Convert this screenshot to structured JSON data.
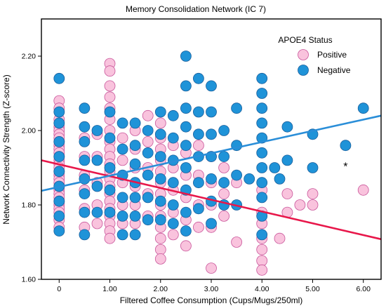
{
  "chart_data": {
    "type": "scatter",
    "title": "Memory Consolidation Network (IC 7)",
    "xlabel": "Filtered Coffee Consumption (Cups/Mugs/250ml)",
    "ylabel": "Network Connectivity Strength (Z-score)",
    "xlim": [
      -0.35,
      6.35
    ],
    "ylim": [
      1.6,
      2.3
    ],
    "x_ticks": [
      0,
      1,
      2,
      3,
      4,
      5,
      6
    ],
    "x_tick_labels": [
      "0",
      "1.00",
      "2.00",
      "3.00",
      "4.00",
      "5.00",
      "6.00"
    ],
    "y_ticks": [
      1.6,
      1.8,
      2.0,
      2.2
    ],
    "y_tick_labels": [
      "1.60",
      "1.80",
      "2.00",
      "2.20"
    ],
    "grid": false,
    "legend": {
      "title": "APOE4 Status",
      "placement": "top-right"
    },
    "annotation": {
      "text": "*",
      "x": 5.65,
      "y": 1.91
    },
    "series": [
      {
        "name": "Positive",
        "color": "#f9c3dd",
        "stroke": "#c9559a",
        "fit_line": {
          "color": "#e8174a",
          "x": [
            -0.35,
            6.35
          ],
          "y": [
            1.92,
            1.708
          ]
        },
        "points": [
          [
            0,
            2.08
          ],
          [
            0,
            2.06
          ],
          [
            0,
            2.03
          ],
          [
            0,
            2.01
          ],
          [
            0,
            2.0
          ],
          [
            0,
            1.99
          ],
          [
            0,
            1.98
          ],
          [
            0,
            1.97
          ],
          [
            0,
            1.96
          ],
          [
            0,
            1.95
          ],
          [
            0,
            1.94
          ],
          [
            0,
            1.93
          ],
          [
            0,
            1.92
          ],
          [
            0,
            1.91
          ],
          [
            0,
            1.9
          ],
          [
            0,
            1.89
          ],
          [
            0,
            1.88
          ],
          [
            0,
            1.87
          ],
          [
            0,
            1.86
          ],
          [
            0,
            1.85
          ],
          [
            0,
            1.84
          ],
          [
            0,
            1.83
          ],
          [
            0,
            1.82
          ],
          [
            0,
            1.81
          ],
          [
            0,
            1.8
          ],
          [
            0,
            1.79
          ],
          [
            0,
            1.78
          ],
          [
            0,
            1.76
          ],
          [
            0,
            1.74
          ],
          [
            0.5,
            1.98
          ],
          [
            0.5,
            1.93
          ],
          [
            0.5,
            1.88
          ],
          [
            0.5,
            1.84
          ],
          [
            0.5,
            1.79
          ],
          [
            0.5,
            1.74
          ],
          [
            0.75,
            1.99
          ],
          [
            0.75,
            1.93
          ],
          [
            0.75,
            1.86
          ],
          [
            0.75,
            1.8
          ],
          [
            0.75,
            1.75
          ],
          [
            1,
            2.18
          ],
          [
            1,
            2.16
          ],
          [
            1,
            2.12
          ],
          [
            1,
            2.09
          ],
          [
            1,
            2.06
          ],
          [
            1,
            2.03
          ],
          [
            1,
            2.0
          ],
          [
            1,
            1.97
          ],
          [
            1,
            1.95
          ],
          [
            1,
            1.93
          ],
          [
            1,
            1.91
          ],
          [
            1,
            1.89
          ],
          [
            1,
            1.87
          ],
          [
            1,
            1.85
          ],
          [
            1,
            1.83
          ],
          [
            1,
            1.81
          ],
          [
            1,
            1.79
          ],
          [
            1,
            1.77
          ],
          [
            1,
            1.75
          ],
          [
            1,
            1.73
          ],
          [
            1,
            1.71
          ],
          [
            1.25,
            1.98
          ],
          [
            1.25,
            1.92
          ],
          [
            1.25,
            1.86
          ],
          [
            1.25,
            1.8
          ],
          [
            1.25,
            1.75
          ],
          [
            1.5,
            2.0
          ],
          [
            1.5,
            1.95
          ],
          [
            1.5,
            1.9
          ],
          [
            1.5,
            1.85
          ],
          [
            1.5,
            1.8
          ],
          [
            1.5,
            1.75
          ],
          [
            1.75,
            2.04
          ],
          [
            1.75,
            1.97
          ],
          [
            1.75,
            1.9
          ],
          [
            1.75,
            1.83
          ],
          [
            1.75,
            1.77
          ],
          [
            2,
            2.02
          ],
          [
            2,
            1.98
          ],
          [
            2,
            1.95
          ],
          [
            2,
            1.92
          ],
          [
            2,
            1.89
          ],
          [
            2,
            1.86
          ],
          [
            2,
            1.83
          ],
          [
            2,
            1.8
          ],
          [
            2,
            1.77
          ],
          [
            2,
            1.74
          ],
          [
            2,
            1.71
          ],
          [
            2,
            1.68
          ],
          [
            2,
            1.655
          ],
          [
            2.25,
            1.96
          ],
          [
            2.25,
            1.9
          ],
          [
            2.25,
            1.84
          ],
          [
            2.25,
            1.78
          ],
          [
            2.25,
            1.72
          ],
          [
            2.5,
            1.94
          ],
          [
            2.5,
            1.88
          ],
          [
            2.5,
            1.82
          ],
          [
            2.5,
            1.76
          ],
          [
            2.5,
            1.69
          ],
          [
            2.75,
            1.96
          ],
          [
            2.75,
            1.88
          ],
          [
            2.75,
            1.8
          ],
          [
            2.75,
            1.74
          ],
          [
            3,
            1.93
          ],
          [
            3,
            1.86
          ],
          [
            3,
            1.8
          ],
          [
            3,
            1.74
          ],
          [
            3,
            1.63
          ],
          [
            3.25,
            1.9
          ],
          [
            3.25,
            1.83
          ],
          [
            3.25,
            1.77
          ],
          [
            3.5,
            1.86
          ],
          [
            3.5,
            1.7
          ],
          [
            4,
            1.84
          ],
          [
            4,
            1.78
          ],
          [
            4,
            1.75
          ],
          [
            4,
            1.71
          ],
          [
            4,
            1.68
          ],
          [
            4,
            1.65
          ],
          [
            4,
            1.625
          ],
          [
            4.35,
            1.71
          ],
          [
            4.5,
            1.83
          ],
          [
            4.5,
            1.78
          ],
          [
            4.75,
            1.8
          ],
          [
            5,
            1.83
          ],
          [
            5,
            1.8
          ],
          [
            6,
            1.84
          ]
        ]
      },
      {
        "name": "Negative",
        "color": "#1f93d8",
        "stroke": "#1a5f9c",
        "fit_line": {
          "color": "#2a8ed8",
          "x": [
            -0.35,
            6.35
          ],
          "y": [
            1.838,
            2.04
          ]
        },
        "points": [
          [
            0,
            2.14
          ],
          [
            0,
            2.05
          ],
          [
            0,
            2.02
          ],
          [
            0,
            1.97
          ],
          [
            0,
            1.93
          ],
          [
            0,
            1.89
          ],
          [
            0,
            1.85
          ],
          [
            0,
            1.81
          ],
          [
            0,
            1.77
          ],
          [
            0,
            1.73
          ],
          [
            0.5,
            2.06
          ],
          [
            0.5,
            2.01
          ],
          [
            0.5,
            1.97
          ],
          [
            0.5,
            1.92
          ],
          [
            0.5,
            1.87
          ],
          [
            0.5,
            1.83
          ],
          [
            0.5,
            1.78
          ],
          [
            0.5,
            1.72
          ],
          [
            0.75,
            2.0
          ],
          [
            0.75,
            1.92
          ],
          [
            0.75,
            1.85
          ],
          [
            0.75,
            1.78
          ],
          [
            1,
            2.05
          ],
          [
            1,
            1.98
          ],
          [
            1,
            1.9
          ],
          [
            1,
            1.84
          ],
          [
            1,
            1.78
          ],
          [
            1.25,
            2.02
          ],
          [
            1.25,
            1.95
          ],
          [
            1.25,
            1.88
          ],
          [
            1.25,
            1.82
          ],
          [
            1.25,
            1.77
          ],
          [
            1.25,
            1.72
          ],
          [
            1.5,
            2.02
          ],
          [
            1.5,
            1.96
          ],
          [
            1.5,
            1.91
          ],
          [
            1.5,
            1.86
          ],
          [
            1.5,
            1.82
          ],
          [
            1.5,
            1.77
          ],
          [
            1.5,
            1.72
          ],
          [
            1.75,
            2.0
          ],
          [
            1.75,
            1.94
          ],
          [
            1.75,
            1.88
          ],
          [
            1.75,
            1.82
          ],
          [
            1.75,
            1.76
          ],
          [
            2,
            2.05
          ],
          [
            2,
            1.99
          ],
          [
            2,
            1.93
          ],
          [
            2,
            1.87
          ],
          [
            2,
            1.81
          ],
          [
            2,
            1.76
          ],
          [
            2.25,
            2.04
          ],
          [
            2.25,
            1.98
          ],
          [
            2.25,
            1.92
          ],
          [
            2.25,
            1.86
          ],
          [
            2.25,
            1.8
          ],
          [
            2.25,
            1.75
          ],
          [
            2.5,
            2.2
          ],
          [
            2.5,
            2.12
          ],
          [
            2.5,
            2.06
          ],
          [
            2.5,
            2.01
          ],
          [
            2.5,
            1.96
          ],
          [
            2.5,
            1.9
          ],
          [
            2.5,
            1.84
          ],
          [
            2.5,
            1.78
          ],
          [
            2.5,
            1.73
          ],
          [
            2.75,
            2.14
          ],
          [
            2.75,
            2.05
          ],
          [
            2.75,
            1.99
          ],
          [
            2.75,
            1.93
          ],
          [
            2.75,
            1.86
          ],
          [
            2.75,
            1.79
          ],
          [
            3,
            2.12
          ],
          [
            3,
            2.05
          ],
          [
            3,
            1.99
          ],
          [
            3,
            1.93
          ],
          [
            3,
            1.87
          ],
          [
            3,
            1.81
          ],
          [
            3,
            1.75
          ],
          [
            3.25,
            2.0
          ],
          [
            3.25,
            1.93
          ],
          [
            3.25,
            1.86
          ],
          [
            3.25,
            1.8
          ],
          [
            3.5,
            2.06
          ],
          [
            3.5,
            1.96
          ],
          [
            3.5,
            1.88
          ],
          [
            3.5,
            1.8
          ],
          [
            3.75,
            1.87
          ],
          [
            4,
            2.14
          ],
          [
            4,
            2.1
          ],
          [
            4,
            2.06
          ],
          [
            4,
            2.02
          ],
          [
            4,
            1.98
          ],
          [
            4,
            1.94
          ],
          [
            4,
            1.9
          ],
          [
            4,
            1.86
          ],
          [
            4,
            1.82
          ],
          [
            4,
            1.77
          ],
          [
            4,
            1.72
          ],
          [
            4.25,
            1.9
          ],
          [
            4.35,
            1.87
          ],
          [
            4.5,
            2.01
          ],
          [
            4.5,
            1.92
          ],
          [
            5,
            1.99
          ],
          [
            5,
            1.9
          ],
          [
            5.65,
            1.96
          ],
          [
            6,
            2.06
          ]
        ]
      }
    ]
  }
}
